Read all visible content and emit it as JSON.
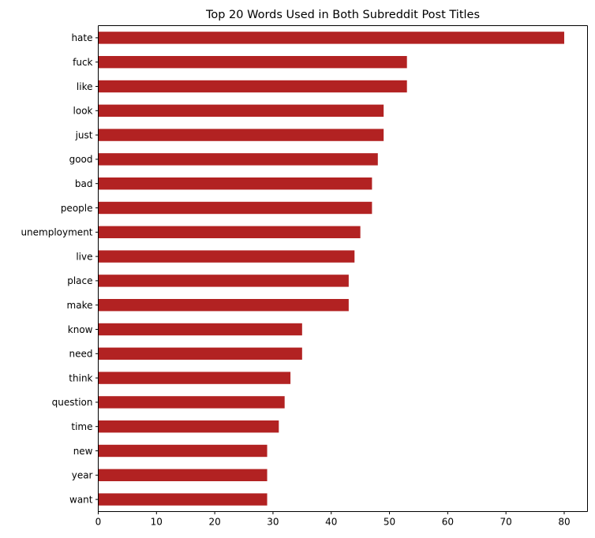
{
  "chart_data": {
    "type": "bar",
    "orientation": "horizontal",
    "title": "Top 20 Words Used in Both Subreddit Post Titles",
    "xlabel": "",
    "ylabel": "",
    "categories": [
      "hate",
      "fuck",
      "like",
      "look",
      "just",
      "good",
      "bad",
      "people",
      "unemployment",
      "live",
      "place",
      "make",
      "know",
      "need",
      "think",
      "question",
      "time",
      "new",
      "year",
      "want"
    ],
    "values": [
      80,
      53,
      53,
      49,
      49,
      48,
      47,
      47,
      45,
      44,
      43,
      43,
      35,
      35,
      33,
      32,
      31,
      29,
      29,
      29
    ],
    "xlim": [
      0,
      84
    ],
    "xticks": [
      0,
      10,
      20,
      30,
      40,
      50,
      60,
      70,
      80
    ],
    "bar_color": "#b22222",
    "grid": false,
    "legend": "none"
  }
}
